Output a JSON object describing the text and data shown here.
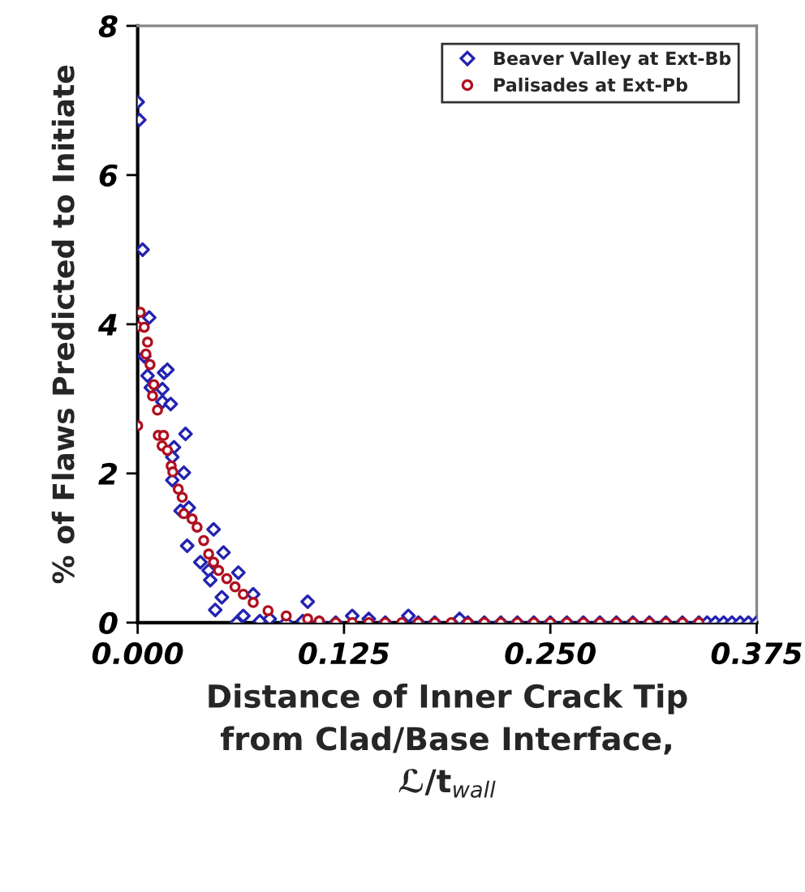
{
  "chart_data": {
    "type": "scatter",
    "xlabel": "Distance of Inner Crack Tip\nfrom Clad/Base Interface,\nℒ/t$_{wall}$",
    "ylabel": "% of Flaws Predicted to Initiate",
    "xlim": [
      0,
      0.375
    ],
    "ylim": [
      0,
      8
    ],
    "xticks": [
      {
        "value": 0,
        "label": "0.000"
      },
      0.125,
      {
        "value": 0.25,
        "label": "0.250"
      },
      0.375
    ],
    "yticks": [
      0,
      2,
      4,
      6,
      8
    ],
    "grid": false,
    "legend": "top right",
    "series": [
      {
        "name": "Beaver Valley at Ext-Bb",
        "color": "#2323b0",
        "marker": "diamond",
        "x": [
          0.0,
          0.001,
          0.003,
          0.007,
          0.004,
          0.006,
          0.008,
          0.015,
          0.016,
          0.018,
          0.015,
          0.02,
          0.029,
          0.022,
          0.021,
          0.028,
          0.021,
          0.031,
          0.026,
          0.046,
          0.03,
          0.052,
          0.038,
          0.043,
          0.044,
          0.061,
          0.051,
          0.047,
          0.07,
          0.064,
          0.074,
          0.103,
          0.13,
          0.14,
          0.164,
          0.195,
          0.06,
          0.08,
          0.09,
          0.1,
          0.11,
          0.12,
          0.15,
          0.17,
          0.18,
          0.2,
          0.21,
          0.22,
          0.23,
          0.24,
          0.25,
          0.26,
          0.27,
          0.28,
          0.29,
          0.3,
          0.31,
          0.32,
          0.33,
          0.34,
          0.345,
          0.35,
          0.355,
          0.36,
          0.365,
          0.37,
          0.375
        ],
        "values": [
          6.98,
          6.74,
          5.0,
          4.09,
          3.57,
          3.31,
          3.15,
          3.13,
          3.35,
          3.39,
          2.96,
          2.93,
          2.53,
          2.35,
          2.22,
          2.01,
          1.91,
          1.54,
          1.5,
          1.25,
          1.03,
          0.94,
          0.81,
          0.7,
          0.57,
          0.67,
          0.34,
          0.17,
          0.38,
          0.09,
          0.02,
          0.28,
          0.09,
          0.05,
          0.09,
          0.05,
          0.0,
          0.05,
          0.0,
          0.02,
          0.0,
          0.0,
          0.0,
          0.0,
          0.0,
          0.0,
          0.0,
          0.0,
          0.0,
          0.0,
          0.0,
          0.0,
          0.0,
          0.0,
          0.0,
          0.0,
          0.0,
          0.0,
          0.0,
          0.0,
          0.0,
          0.0,
          0.0,
          0.0,
          0.0,
          0.0,
          0.0
        ]
      },
      {
        "name": "Palisades at Ext-Pb",
        "color": "#b01020",
        "marker": "circle",
        "x": [
          0.0,
          0.0016,
          0.0,
          0.004,
          0.006,
          0.005,
          0.0075,
          0.0098,
          0.009,
          0.012,
          0.0125,
          0.0157,
          0.0148,
          0.018,
          0.0203,
          0.0213,
          0.0246,
          0.027,
          0.028,
          0.033,
          0.036,
          0.04,
          0.043,
          0.046,
          0.049,
          0.054,
          0.059,
          0.064,
          0.07,
          0.079,
          0.09,
          0.103,
          0.11,
          0.12,
          0.13,
          0.14,
          0.15,
          0.16,
          0.17,
          0.18,
          0.19,
          0.2,
          0.21,
          0.22,
          0.23,
          0.24,
          0.25,
          0.26,
          0.27,
          0.28,
          0.29,
          0.3,
          0.31,
          0.32,
          0.33,
          0.34
        ],
        "values": [
          2.64,
          4.16,
          3.97,
          3.96,
          3.76,
          3.6,
          3.46,
          3.19,
          3.04,
          2.85,
          2.51,
          2.51,
          2.37,
          2.31,
          2.1,
          2.02,
          1.79,
          1.68,
          1.46,
          1.39,
          1.28,
          1.1,
          0.92,
          0.81,
          0.7,
          0.59,
          0.48,
          0.38,
          0.27,
          0.16,
          0.09,
          0.05,
          0.02,
          0.0,
          0.0,
          0.0,
          0.0,
          0.0,
          0.0,
          0.0,
          0.0,
          0.0,
          0.0,
          0.0,
          0.0,
          0.0,
          0.0,
          0.0,
          0.0,
          0.0,
          0.0,
          0.0,
          0.0,
          0.0,
          0.0,
          0.0
        ]
      }
    ]
  }
}
